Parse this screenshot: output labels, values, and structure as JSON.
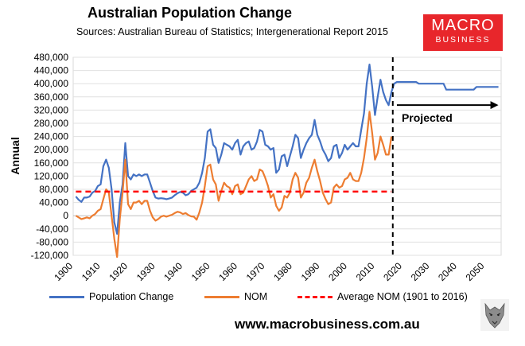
{
  "header": {
    "title": "Australian Population Change",
    "sources": "Sources: Australian Bureau of Statistics; Intergenerational Report 2015"
  },
  "logo": {
    "line1": "MACRO",
    "line2": "BUSINESS"
  },
  "website": "www.macrobusiness.com.au",
  "colors": {
    "pop": "#4472c4",
    "nom": "#ed7d31",
    "avg": "#ff0000",
    "logo": "#e8262b"
  },
  "chart_data": {
    "type": "line",
    "title": "Australian Population Change",
    "ylabel": "Annual",
    "xlabel": "",
    "xlim": [
      1900,
      2056
    ],
    "ylim": [
      -120000,
      480000
    ],
    "x_ticks": [
      1900,
      1910,
      1920,
      1930,
      1940,
      1950,
      1960,
      1970,
      1980,
      1990,
      2000,
      2010,
      2020,
      2030,
      2040,
      2050
    ],
    "y_ticks": [
      {
        "v": 480000,
        "label": "480,000"
      },
      {
        "v": 440000,
        "label": "440,000"
      },
      {
        "v": 400000,
        "label": "400,000"
      },
      {
        "v": 360000,
        "label": "360,000"
      },
      {
        "v": 320000,
        "label": "320,000"
      },
      {
        "v": 280000,
        "label": "280,000"
      },
      {
        "v": 240000,
        "label": "240,000"
      },
      {
        "v": 200000,
        "label": "200,000"
      },
      {
        "v": 160000,
        "label": "160,000"
      },
      {
        "v": 120000,
        "label": "120,000"
      },
      {
        "v": 80000,
        "label": "80,000"
      },
      {
        "v": 40000,
        "label": "40,000"
      },
      {
        "v": 0,
        "label": "0"
      },
      {
        "v": -40000,
        "label": "-40,000"
      },
      {
        "v": -80000,
        "label": "-80,000"
      },
      {
        "v": -120000,
        "label": "-120,000"
      }
    ],
    "series": [
      {
        "name": "Population Change",
        "color": "#4472c4",
        "points": [
          [
            1901,
            58000
          ],
          [
            1902,
            48000
          ],
          [
            1903,
            42000
          ],
          [
            1904,
            55000
          ],
          [
            1905,
            55000
          ],
          [
            1906,
            58000
          ],
          [
            1907,
            70000
          ],
          [
            1908,
            75000
          ],
          [
            1909,
            90000
          ],
          [
            1910,
            95000
          ],
          [
            1911,
            150000
          ],
          [
            1912,
            170000
          ],
          [
            1913,
            145000
          ],
          [
            1914,
            80000
          ],
          [
            1915,
            -20000
          ],
          [
            1916,
            -55000
          ],
          [
            1917,
            40000
          ],
          [
            1918,
            95000
          ],
          [
            1919,
            220000
          ],
          [
            1920,
            120000
          ],
          [
            1921,
            110000
          ],
          [
            1922,
            125000
          ],
          [
            1923,
            120000
          ],
          [
            1924,
            125000
          ],
          [
            1925,
            120000
          ],
          [
            1926,
            125000
          ],
          [
            1927,
            125000
          ],
          [
            1928,
            100000
          ],
          [
            1929,
            75000
          ],
          [
            1930,
            55000
          ],
          [
            1931,
            52000
          ],
          [
            1932,
            53000
          ],
          [
            1933,
            52000
          ],
          [
            1934,
            50000
          ],
          [
            1935,
            52000
          ],
          [
            1936,
            55000
          ],
          [
            1937,
            62000
          ],
          [
            1938,
            68000
          ],
          [
            1939,
            72000
          ],
          [
            1940,
            70000
          ],
          [
            1941,
            62000
          ],
          [
            1942,
            65000
          ],
          [
            1943,
            75000
          ],
          [
            1944,
            80000
          ],
          [
            1945,
            85000
          ],
          [
            1946,
            100000
          ],
          [
            1947,
            130000
          ],
          [
            1948,
            175000
          ],
          [
            1949,
            255000
          ],
          [
            1950,
            262000
          ],
          [
            1951,
            215000
          ],
          [
            1952,
            205000
          ],
          [
            1953,
            160000
          ],
          [
            1954,
            185000
          ],
          [
            1955,
            220000
          ],
          [
            1956,
            215000
          ],
          [
            1957,
            210000
          ],
          [
            1958,
            200000
          ],
          [
            1959,
            220000
          ],
          [
            1960,
            230000
          ],
          [
            1961,
            185000
          ],
          [
            1962,
            210000
          ],
          [
            1963,
            220000
          ],
          [
            1964,
            225000
          ],
          [
            1965,
            200000
          ],
          [
            1966,
            205000
          ],
          [
            1967,
            225000
          ],
          [
            1968,
            260000
          ],
          [
            1969,
            255000
          ],
          [
            1970,
            215000
          ],
          [
            1971,
            210000
          ],
          [
            1972,
            200000
          ],
          [
            1973,
            205000
          ],
          [
            1974,
            130000
          ],
          [
            1975,
            140000
          ],
          [
            1976,
            180000
          ],
          [
            1977,
            185000
          ],
          [
            1978,
            150000
          ],
          [
            1979,
            180000
          ],
          [
            1980,
            210000
          ],
          [
            1981,
            245000
          ],
          [
            1982,
            235000
          ],
          [
            1983,
            175000
          ],
          [
            1984,
            200000
          ],
          [
            1985,
            220000
          ],
          [
            1986,
            235000
          ],
          [
            1987,
            245000
          ],
          [
            1988,
            290000
          ],
          [
            1989,
            245000
          ],
          [
            1990,
            225000
          ],
          [
            1991,
            200000
          ],
          [
            1992,
            185000
          ],
          [
            1993,
            165000
          ],
          [
            1994,
            175000
          ],
          [
            1995,
            210000
          ],
          [
            1996,
            215000
          ],
          [
            1997,
            175000
          ],
          [
            1998,
            190000
          ],
          [
            1999,
            215000
          ],
          [
            2000,
            200000
          ],
          [
            2001,
            210000
          ],
          [
            2002,
            220000
          ],
          [
            2003,
            210000
          ],
          [
            2004,
            210000
          ],
          [
            2005,
            260000
          ],
          [
            2006,
            310000
          ],
          [
            2007,
            400000
          ],
          [
            2008,
            458000
          ],
          [
            2009,
            390000
          ],
          [
            2010,
            305000
          ],
          [
            2011,
            360000
          ],
          [
            2012,
            412000
          ],
          [
            2013,
            375000
          ],
          [
            2014,
            350000
          ],
          [
            2015,
            335000
          ],
          [
            2016,
            375000
          ],
          [
            2017,
            400000
          ],
          [
            2018,
            405000
          ],
          [
            2019,
            405000
          ],
          [
            2020,
            405000
          ],
          [
            2025,
            405000
          ],
          [
            2026,
            400000
          ],
          [
            2035,
            400000
          ],
          [
            2036,
            382000
          ],
          [
            2046,
            382000
          ],
          [
            2047,
            390000
          ],
          [
            2055,
            390000
          ]
        ]
      },
      {
        "name": "NOM",
        "color": "#ed7d31",
        "points": [
          [
            1901,
            0
          ],
          [
            1902,
            -5000
          ],
          [
            1903,
            -10000
          ],
          [
            1904,
            -8000
          ],
          [
            1905,
            -5000
          ],
          [
            1906,
            -8000
          ],
          [
            1907,
            0
          ],
          [
            1908,
            5000
          ],
          [
            1909,
            15000
          ],
          [
            1910,
            20000
          ],
          [
            1911,
            50000
          ],
          [
            1912,
            80000
          ],
          [
            1913,
            70000
          ],
          [
            1914,
            0
          ],
          [
            1915,
            -70000
          ],
          [
            1916,
            -125000
          ],
          [
            1917,
            -10000
          ],
          [
            1918,
            70000
          ],
          [
            1919,
            170000
          ],
          [
            1920,
            35000
          ],
          [
            1921,
            20000
          ],
          [
            1922,
            40000
          ],
          [
            1923,
            40000
          ],
          [
            1924,
            45000
          ],
          [
            1925,
            35000
          ],
          [
            1926,
            45000
          ],
          [
            1927,
            45000
          ],
          [
            1928,
            15000
          ],
          [
            1929,
            -5000
          ],
          [
            1930,
            -15000
          ],
          [
            1931,
            -10000
          ],
          [
            1932,
            -3000
          ],
          [
            1933,
            0
          ],
          [
            1934,
            -3000
          ],
          [
            1935,
            0
          ],
          [
            1936,
            3000
          ],
          [
            1937,
            8000
          ],
          [
            1938,
            12000
          ],
          [
            1939,
            10000
          ],
          [
            1940,
            5000
          ],
          [
            1941,
            8000
          ],
          [
            1942,
            2000
          ],
          [
            1943,
            -2000
          ],
          [
            1944,
            -3000
          ],
          [
            1945,
            -12000
          ],
          [
            1946,
            10000
          ],
          [
            1947,
            40000
          ],
          [
            1948,
            90000
          ],
          [
            1949,
            150000
          ],
          [
            1950,
            155000
          ],
          [
            1951,
            110000
          ],
          [
            1952,
            95000
          ],
          [
            1953,
            45000
          ],
          [
            1954,
            75000
          ],
          [
            1955,
            100000
          ],
          [
            1956,
            90000
          ],
          [
            1957,
            85000
          ],
          [
            1958,
            65000
          ],
          [
            1959,
            90000
          ],
          [
            1960,
            95000
          ],
          [
            1961,
            65000
          ],
          [
            1962,
            70000
          ],
          [
            1963,
            90000
          ],
          [
            1964,
            110000
          ],
          [
            1965,
            120000
          ],
          [
            1966,
            105000
          ],
          [
            1967,
            110000
          ],
          [
            1968,
            140000
          ],
          [
            1969,
            135000
          ],
          [
            1970,
            115000
          ],
          [
            1971,
            90000
          ],
          [
            1972,
            55000
          ],
          [
            1973,
            65000
          ],
          [
            1974,
            30000
          ],
          [
            1975,
            15000
          ],
          [
            1976,
            25000
          ],
          [
            1977,
            60000
          ],
          [
            1978,
            55000
          ],
          [
            1979,
            70000
          ],
          [
            1980,
            110000
          ],
          [
            1981,
            130000
          ],
          [
            1982,
            115000
          ],
          [
            1983,
            55000
          ],
          [
            1984,
            70000
          ],
          [
            1985,
            100000
          ],
          [
            1986,
            115000
          ],
          [
            1987,
            145000
          ],
          [
            1988,
            170000
          ],
          [
            1989,
            135000
          ],
          [
            1990,
            105000
          ],
          [
            1991,
            70000
          ],
          [
            1992,
            50000
          ],
          [
            1993,
            35000
          ],
          [
            1994,
            40000
          ],
          [
            1995,
            85000
          ],
          [
            1996,
            95000
          ],
          [
            1997,
            85000
          ],
          [
            1998,
            90000
          ],
          [
            1999,
            110000
          ],
          [
            2000,
            115000
          ],
          [
            2001,
            130000
          ],
          [
            2002,
            110000
          ],
          [
            2003,
            105000
          ],
          [
            2004,
            105000
          ],
          [
            2005,
            130000
          ],
          [
            2006,
            175000
          ],
          [
            2007,
            235000
          ],
          [
            2008,
            315000
          ],
          [
            2009,
            250000
          ],
          [
            2010,
            170000
          ],
          [
            2011,
            190000
          ],
          [
            2012,
            240000
          ],
          [
            2013,
            215000
          ],
          [
            2014,
            185000
          ],
          [
            2015,
            185000
          ],
          [
            2016,
            240000
          ]
        ]
      },
      {
        "name": "Average NOM (1901 to 2016)",
        "color": "#ff0000",
        "dashed": true,
        "points": [
          [
            1901,
            73000
          ],
          [
            2016,
            73000
          ]
        ]
      }
    ],
    "annotations": [
      {
        "text": "Projected",
        "x": 2029,
        "y": 285000
      },
      {
        "type": "vline",
        "x": 2016.5,
        "style": "dashed"
      },
      {
        "type": "arrow",
        "from_x": 2018,
        "to_x": 2055,
        "y": 335000
      }
    ],
    "legend": [
      {
        "label": "Population Change"
      },
      {
        "label": "NOM"
      },
      {
        "label": "Average NOM (1901 to 2016)"
      }
    ]
  }
}
